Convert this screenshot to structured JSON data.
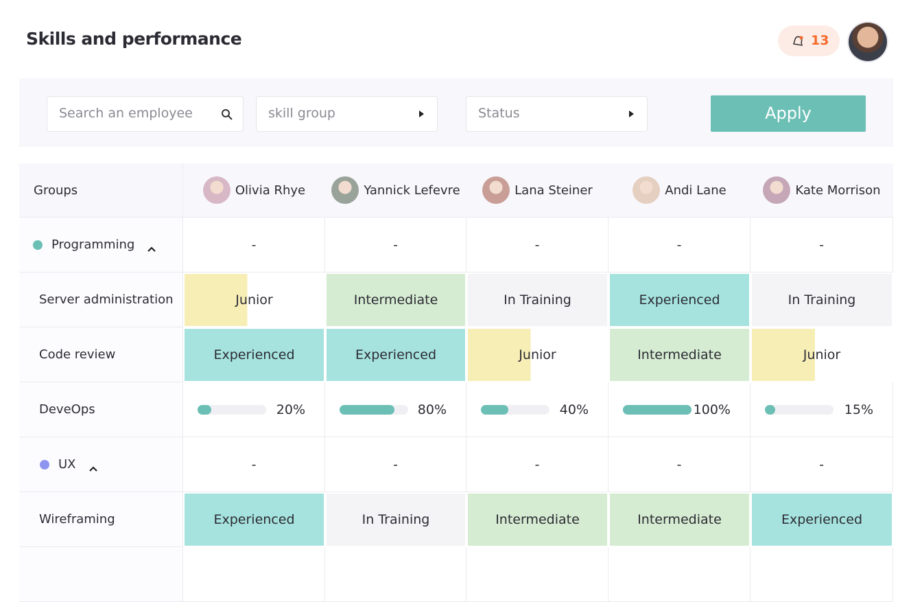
{
  "header": {
    "title": "Skills and performance",
    "notifications": 13
  },
  "filters": {
    "search_placeholder": "Search an employee",
    "skill_group": "skill group",
    "status": "Status",
    "apply": "Apply"
  },
  "table": {
    "groups_header": "Groups",
    "employees": [
      "Olivia Rhye",
      "Yannick Lefevre",
      "Lana Steiner",
      "Andi Lane",
      "Kate Morrison"
    ],
    "groups": [
      {
        "name": "Programming",
        "color": "#6bbfb5",
        "summary": [
          "-",
          "-",
          "-",
          "-",
          "-"
        ],
        "skills": [
          {
            "name": "Server administration",
            "levels": [
              "Junior",
              "Intermediate",
              "In Training",
              "Experienced",
              "In Training"
            ]
          },
          {
            "name": "Code review",
            "levels": [
              "Experienced",
              "Experienced",
              "Junior",
              "Intermediate",
              "Junior"
            ]
          },
          {
            "name": "DeveOps",
            "progress": [
              {
                "value": 20,
                "label": "20%"
              },
              {
                "value": 80,
                "label": "80%"
              },
              {
                "value": 40,
                "label": "40%"
              },
              {
                "value": 100,
                "label": "100%"
              },
              {
                "value": 15,
                "label": "15%"
              }
            ]
          }
        ]
      },
      {
        "name": "UX",
        "color": "#8d95ee",
        "summary": [
          "-",
          "-",
          "-",
          "-",
          "-"
        ],
        "skills": [
          {
            "name": "Wireframing",
            "levels": [
              "Experienced",
              "In Training",
              "Intermediate",
              "Intermediate",
              "Experienced"
            ]
          }
        ]
      }
    ]
  }
}
